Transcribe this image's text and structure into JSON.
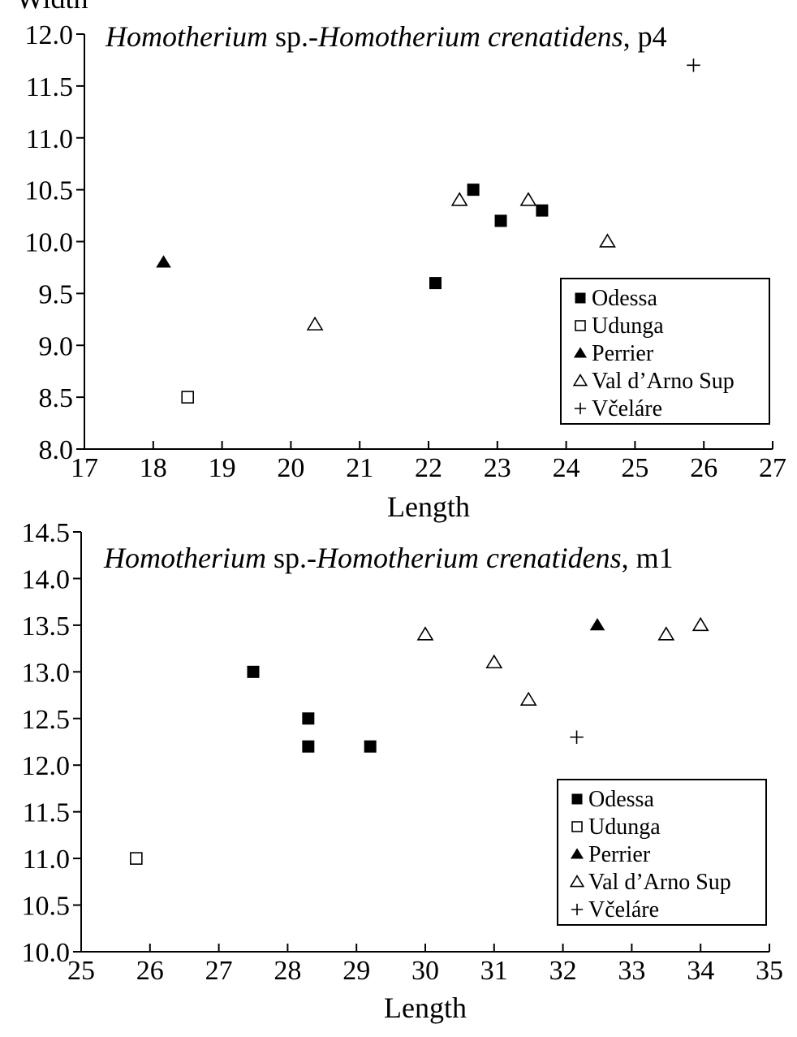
{
  "chart_data": [
    {
      "type": "scatter",
      "title_italic_1": "Homotherium",
      "title_plain_1": " sp.-",
      "title_italic_2": "Homotherium crenatidens",
      "title_plain_2": ", p4",
      "xlabel": "Length",
      "ylabel": "Width",
      "xlim": [
        17,
        27
      ],
      "ylim": [
        8.0,
        12.0
      ],
      "xticks": [
        "17",
        "18",
        "19",
        "20",
        "21",
        "22",
        "23",
        "24",
        "25",
        "26",
        "27"
      ],
      "yticks": [
        "8.0",
        "8.5",
        "9.0",
        "9.5",
        "10.0",
        "10.5",
        "11.0",
        "11.5",
        "12.0"
      ],
      "legend_position": "right",
      "series": [
        {
          "name": "Odessa",
          "marker": "filled-square",
          "points": [
            [
              22.1,
              9.6
            ],
            [
              22.65,
              10.5
            ],
            [
              23.05,
              10.2
            ],
            [
              23.65,
              10.3
            ]
          ]
        },
        {
          "name": "Udunga",
          "marker": "open-square",
          "points": [
            [
              18.5,
              8.5
            ]
          ]
        },
        {
          "name": "Perrier",
          "marker": "filled-triangle",
          "points": [
            [
              18.15,
              9.8
            ]
          ]
        },
        {
          "name": "Val d’Arno Sup",
          "marker": "open-triangle",
          "points": [
            [
              20.35,
              9.2
            ],
            [
              22.45,
              10.4
            ],
            [
              23.45,
              10.4
            ],
            [
              24.6,
              10.0
            ]
          ]
        },
        {
          "name": "Včeláre",
          "marker": "plus",
          "points": [
            [
              25.85,
              11.7
            ]
          ]
        }
      ]
    },
    {
      "type": "scatter",
      "title_italic_1": "Homotherium",
      "title_plain_1": " sp.-",
      "title_italic_2": "Homotherium crenatidens",
      "title_plain_2": ", m1",
      "xlabel": "Length",
      "ylabel": "",
      "xlim": [
        25,
        35
      ],
      "ylim": [
        10.0,
        14.5
      ],
      "xticks": [
        "25",
        "26",
        "27",
        "28",
        "29",
        "30",
        "31",
        "32",
        "33",
        "34",
        "35"
      ],
      "yticks": [
        "10.0",
        "10.5",
        "11.0",
        "11.5",
        "12.0",
        "12.5",
        "13.0",
        "13.5",
        "14.0",
        "14.5"
      ],
      "legend_position": "bottom-right",
      "series": [
        {
          "name": "Odessa",
          "marker": "filled-square",
          "points": [
            [
              27.5,
              13.0
            ],
            [
              28.3,
              12.5
            ],
            [
              28.3,
              12.2
            ],
            [
              29.2,
              12.2
            ]
          ]
        },
        {
          "name": "Udunga",
          "marker": "open-square",
          "points": [
            [
              25.8,
              11.0
            ]
          ]
        },
        {
          "name": "Perrier",
          "marker": "filled-triangle",
          "points": [
            [
              32.5,
              13.5
            ]
          ]
        },
        {
          "name": "Val d’Arno Sup",
          "marker": "open-triangle",
          "points": [
            [
              30.0,
              13.4
            ],
            [
              31.0,
              13.1
            ],
            [
              31.5,
              12.7
            ],
            [
              33.5,
              13.4
            ],
            [
              34.0,
              13.5
            ]
          ]
        },
        {
          "name": "Včeláre",
          "marker": "plus",
          "points": [
            [
              32.2,
              12.3
            ]
          ]
        }
      ]
    }
  ]
}
